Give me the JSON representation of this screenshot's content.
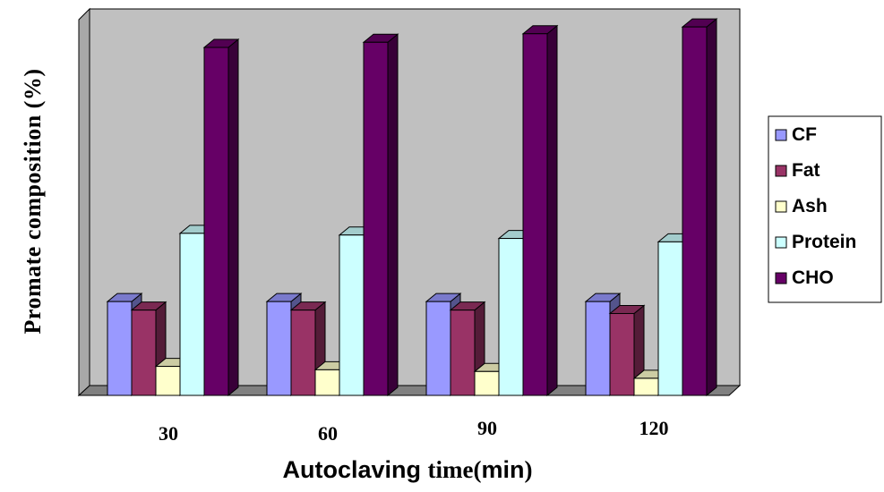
{
  "chart_data": {
    "type": "bar",
    "style": "3d-clustered-column",
    "categories": [
      "30",
      "60",
      "90",
      "120"
    ],
    "series": [
      {
        "name": "CF",
        "values": [
          27.5,
          27.5,
          27.5,
          27.5
        ],
        "color": "#9999ff"
      },
      {
        "name": "Fat",
        "values": [
          25,
          25,
          25,
          24
        ],
        "color": "#993366"
      },
      {
        "name": "Ash",
        "values": [
          8.5,
          7.5,
          7,
          5
        ],
        "color": "#ffffcc"
      },
      {
        "name": "Protein",
        "values": [
          47.5,
          47,
          46,
          45
        ],
        "color": "#ccffff"
      },
      {
        "name": "CHO",
        "values": [
          102,
          103.5,
          106,
          108
        ],
        "color": "#660066"
      }
    ],
    "xlabel_parts": [
      "Autoclaving ",
      "time(",
      "min",
      ")"
    ],
    "ylabel": "Promate composition (%)",
    "ylim": [
      0,
      115
    ],
    "legend_position": "right",
    "gridlines": false,
    "background_color": "#c0c0c0"
  }
}
